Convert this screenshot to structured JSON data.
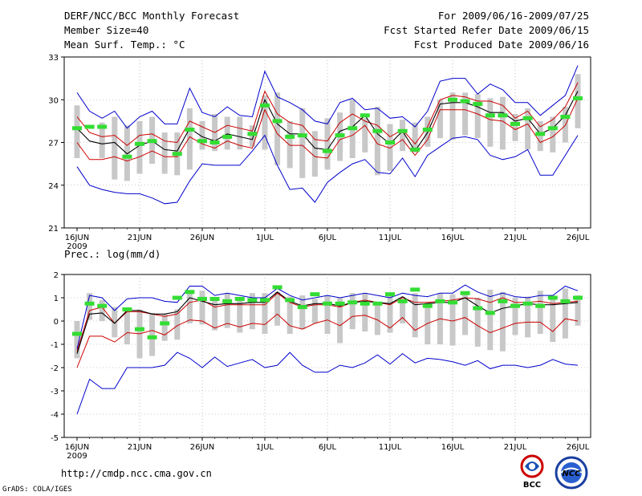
{
  "header": {
    "title": "DERF/NCC/BCC Monthly Forecast",
    "member": "Member Size=40",
    "variable": "Mean Surf. Temp.: °C",
    "period": "For 2009/06/16-2009/07/25",
    "started": "Fcst Started Refer Date 2009/06/15",
    "produced": "Fcst Produced Date 2009/06/16"
  },
  "footer": {
    "url": "http://cmdp.ncc.cma.gov.cn",
    "grads": "GrADS: COLA/IGES",
    "bcc_logo": "BCC",
    "ncc_logo": "NCC"
  },
  "colors": {
    "max_min": "#0000cc",
    "spread": "#cc0000",
    "mean": "#000000",
    "box": "#c8c8c8",
    "obs": "#33dd33"
  },
  "chart_data": [
    {
      "type": "line",
      "title": "Mean Surf. Temp.: °C",
      "xlim": [
        0,
        40
      ],
      "ylim": [
        21,
        33
      ],
      "yticks": [
        21,
        24,
        27,
        30,
        33
      ],
      "xticks": [
        {
          "day": 0,
          "label": "16JUN",
          "sub": "2009"
        },
        {
          "day": 5,
          "label": "21JUN"
        },
        {
          "day": 10,
          "label": "26JUN"
        },
        {
          "day": 15,
          "label": "1JUL"
        },
        {
          "day": 20,
          "label": "6JUL"
        },
        {
          "day": 25,
          "label": "11JUL"
        },
        {
          "day": 30,
          "label": "16JUL"
        },
        {
          "day": 35,
          "label": "21JUL"
        },
        {
          "day": 40,
          "label": "26JUL"
        }
      ],
      "series": {
        "max": [
          30.5,
          29.2,
          28.7,
          29.2,
          28.0,
          28.8,
          29.2,
          28.3,
          28.3,
          30.8,
          29.1,
          28.8,
          29.5,
          28.9,
          28.8,
          32.0,
          30.2,
          29.8,
          29.3,
          28.5,
          28.3,
          29.8,
          30.1,
          29.3,
          29.4,
          28.7,
          28.8,
          28.1,
          29.2,
          31.3,
          31.5,
          31.5,
          30.4,
          31.1,
          30.7,
          29.8,
          29.8,
          28.9,
          29.6,
          30.3,
          32.4
        ],
        "upper": [
          28.8,
          27.7,
          27.4,
          27.5,
          26.8,
          27.5,
          27.6,
          27.1,
          27.0,
          28.5,
          28.1,
          27.7,
          28.2,
          28.0,
          27.8,
          30.6,
          29.0,
          28.4,
          28.2,
          27.2,
          27.1,
          28.4,
          29.0,
          28.5,
          28.2,
          27.4,
          27.9,
          26.9,
          28.1,
          30.0,
          30.3,
          30.2,
          29.9,
          29.9,
          29.6,
          28.7,
          29.2,
          28.1,
          28.6,
          29.5,
          31.2
        ],
        "mean": [
          28.0,
          27.1,
          26.9,
          27.0,
          26.2,
          26.8,
          27.1,
          26.5,
          26.4,
          28.0,
          27.4,
          27.1,
          27.6,
          27.4,
          27.2,
          30.0,
          28.3,
          27.6,
          27.6,
          26.6,
          26.5,
          27.8,
          28.1,
          28.9,
          27.6,
          26.9,
          27.8,
          26.4,
          27.7,
          29.7,
          29.8,
          29.8,
          29.5,
          29.1,
          29.1,
          28.5,
          28.7,
          27.6,
          28.0,
          28.9,
          30.6
        ],
        "lower": [
          27.0,
          25.8,
          25.8,
          26.0,
          25.7,
          26.0,
          26.4,
          26.0,
          26.0,
          27.4,
          26.9,
          26.6,
          27.1,
          26.8,
          26.6,
          29.3,
          27.6,
          26.8,
          26.8,
          26.0,
          25.9,
          27.2,
          27.5,
          28.2,
          26.9,
          26.6,
          27.2,
          26.1,
          27.2,
          29.3,
          29.3,
          29.3,
          29.0,
          28.6,
          28.5,
          27.9,
          28.3,
          27.0,
          27.4,
          28.2,
          30.1
        ],
        "min": [
          25.3,
          24.0,
          23.7,
          23.5,
          23.4,
          23.4,
          23.1,
          22.7,
          22.8,
          24.3,
          25.5,
          25.4,
          25.4,
          25.4,
          26.4,
          27.5,
          25.4,
          23.7,
          23.8,
          22.8,
          24.2,
          24.9,
          25.5,
          25.8,
          24.9,
          24.8,
          25.9,
          24.6,
          26.1,
          26.7,
          27.3,
          27.4,
          27.2,
          26.1,
          25.8,
          26.0,
          26.5,
          24.7,
          24.7,
          26.1,
          27.5
        ],
        "obs": [
          28.0,
          28.1,
          28.1,
          null,
          26.0,
          26.9,
          27.1,
          null,
          26.2,
          27.9,
          27.1,
          27.0,
          27.4,
          null,
          27.6,
          29.6,
          28.5,
          27.4,
          27.5,
          null,
          26.4,
          27.5,
          28.0,
          28.9,
          27.8,
          27.0,
          27.8,
          26.5,
          27.9,
          null,
          30.0,
          29.9,
          29.7,
          28.9,
          28.9,
          28.3,
          28.7,
          27.6,
          28.0,
          28.8,
          30.1
        ],
        "box_low": [
          25.9,
          null,
          25.9,
          24.4,
          24.3,
          24.8,
          25.5,
          24.8,
          24.7,
          25.1,
          26.5,
          26.4,
          26.5,
          26.5,
          26.7,
          26.5,
          25.4,
          25.2,
          24.5,
          24.6,
          25.1,
          25.7,
          25.9,
          26.3,
          24.7,
          25.0,
          26.4,
          26.3,
          26.7,
          27.3,
          27.2,
          27.5,
          27.3,
          26.7,
          26.5,
          27.1,
          26.5,
          26.4,
          26.3,
          27.0,
          28.0
        ],
        "box_high": [
          29.6,
          null,
          28.4,
          28.8,
          28.2,
          28.5,
          28.8,
          27.7,
          27.7,
          29.4,
          28.5,
          29.0,
          28.8,
          28.8,
          28.2,
          30.3,
          30.5,
          28.5,
          29.4,
          27.8,
          28.7,
          29.1,
          30.0,
          28.7,
          29.5,
          28.3,
          28.6,
          28.4,
          28.8,
          30.0,
          30.5,
          30.5,
          30.4,
          30.1,
          30.2,
          29.0,
          29.4,
          28.5,
          28.8,
          29.5,
          31.8
        ]
      }
    },
    {
      "type": "line",
      "title": "Prec.: log(mm/d)",
      "xlim": [
        0,
        40
      ],
      "ylim": [
        -5,
        2
      ],
      "yticks": [
        -5,
        -4,
        -3,
        -2,
        -1,
        0,
        1,
        2
      ],
      "xticks": [
        {
          "day": 0,
          "label": "16JUN",
          "sub": "2009"
        },
        {
          "day": 5,
          "label": "21JUN"
        },
        {
          "day": 10,
          "label": "26JUN"
        },
        {
          "day": 15,
          "label": "1JUL"
        },
        {
          "day": 20,
          "label": "6JUL"
        },
        {
          "day": 25,
          "label": "11JUL"
        },
        {
          "day": 30,
          "label": "16JUL"
        },
        {
          "day": 35,
          "label": "21JUL"
        },
        {
          "day": 40,
          "label": "26JUL"
        }
      ],
      "series": {
        "max": [
          -1.2,
          1.1,
          1.0,
          0.45,
          0.95,
          1.0,
          1.0,
          0.85,
          0.8,
          1.5,
          1.5,
          1.1,
          1.2,
          1.1,
          1.0,
          1.0,
          1.4,
          1.1,
          0.9,
          1.0,
          1.1,
          1.0,
          1.1,
          1.2,
          1.1,
          1.0,
          1.2,
          1.1,
          1.05,
          1.2,
          1.2,
          1.55,
          1.25,
          1.05,
          1.2,
          1.05,
          1.0,
          1.1,
          1.1,
          1.5,
          1.3
        ],
        "upper": [
          -1.3,
          0.45,
          0.6,
          -0.1,
          0.4,
          0.4,
          0.3,
          0.2,
          0.3,
          0.8,
          0.9,
          0.6,
          0.7,
          0.7,
          0.7,
          0.7,
          1.2,
          0.8,
          0.6,
          0.7,
          0.7,
          0.6,
          0.8,
          0.9,
          0.8,
          0.7,
          1.0,
          0.8,
          0.8,
          0.85,
          0.9,
          1.0,
          0.95,
          0.8,
          1.0,
          0.8,
          0.8,
          0.85,
          0.75,
          0.8,
          0.85
        ],
        "mean": [
          -1.4,
          0.3,
          0.35,
          -0.1,
          0.45,
          0.45,
          0.3,
          0.3,
          0.4,
          1.0,
          0.85,
          0.7,
          0.75,
          0.75,
          0.8,
          0.8,
          1.25,
          0.85,
          0.65,
          0.75,
          0.75,
          0.65,
          0.8,
          0.85,
          0.8,
          0.75,
          1.05,
          0.7,
          0.75,
          0.8,
          0.8,
          1.0,
          0.65,
          0.35,
          0.55,
          0.65,
          0.75,
          0.7,
          0.7,
          0.75,
          0.8
        ],
        "lower": [
          -2.0,
          -0.65,
          -0.65,
          -0.9,
          -0.5,
          -0.55,
          -0.4,
          -0.6,
          -0.2,
          0.05,
          0.0,
          -0.3,
          -0.1,
          -0.25,
          -0.1,
          -0.15,
          0.3,
          -0.2,
          -0.35,
          -0.1,
          0.05,
          -0.2,
          0.2,
          0.25,
          0.05,
          -0.3,
          0.15,
          -0.4,
          -0.1,
          0.1,
          0.0,
          0.15,
          -0.2,
          -0.5,
          -0.3,
          -0.1,
          -0.05,
          -0.05,
          -0.45,
          0.1,
          0.0
        ],
        "min": [
          -4.0,
          -2.5,
          -2.9,
          -2.9,
          -2.0,
          -2.0,
          -2.0,
          -1.9,
          -1.35,
          -1.6,
          -2.0,
          -1.55,
          -1.95,
          -1.8,
          -1.65,
          -2.0,
          -1.9,
          -1.35,
          -1.9,
          -2.2,
          -2.2,
          -1.9,
          -2.0,
          -1.8,
          -1.45,
          -1.85,
          -1.4,
          -1.8,
          -1.6,
          -1.65,
          -1.75,
          -1.9,
          -1.7,
          -2.05,
          -1.9,
          -1.9,
          -2.0,
          -1.9,
          -1.65,
          -1.85,
          -1.9
        ],
        "obs": [
          -0.55,
          0.75,
          0.65,
          null,
          0.5,
          -0.35,
          -0.7,
          -0.1,
          1.0,
          1.25,
          0.95,
          0.95,
          0.85,
          0.95,
          0.9,
          0.9,
          1.45,
          0.9,
          0.6,
          1.15,
          0.75,
          0.75,
          0.8,
          0.75,
          0.75,
          1.15,
          0.85,
          1.35,
          0.65,
          0.85,
          0.8,
          1.2,
          0.55,
          0.35,
          0.85,
          0.65,
          0.75,
          0.65,
          1.0,
          0.85,
          1.0
        ],
        "box_low": [
          -1.6,
          0.05,
          0.0,
          -0.7,
          -1.0,
          -1.6,
          -1.5,
          -0.85,
          -0.8,
          -0.1,
          -0.15,
          -0.4,
          -0.3,
          -0.5,
          -0.35,
          -0.55,
          -0.2,
          -0.55,
          -0.35,
          -0.1,
          -0.55,
          -0.95,
          -0.35,
          -0.45,
          -0.6,
          -0.5,
          -0.1,
          -0.7,
          -1.0,
          -1.0,
          -1.05,
          -0.6,
          -1.1,
          -1.25,
          -1.3,
          -0.6,
          -0.7,
          -0.55,
          -0.9,
          -0.75,
          -0.2
        ],
        "box_high": [
          0.0,
          1.2,
          0.9,
          0.6,
          0.5,
          0.5,
          0.35,
          0.3,
          0.5,
          1.3,
          1.3,
          0.9,
          1.2,
          0.9,
          1.2,
          1.2,
          1.25,
          1.05,
          1.1,
          0.95,
          1.1,
          1.0,
          1.2,
          1.2,
          0.8,
          1.2,
          0.85,
          1.2,
          0.8,
          1.2,
          1.15,
          1.25,
          1.0,
          1.35,
          1.25,
          1.0,
          1.05,
          1.3,
          1.1,
          1.4,
          1.1
        ]
      }
    }
  ]
}
